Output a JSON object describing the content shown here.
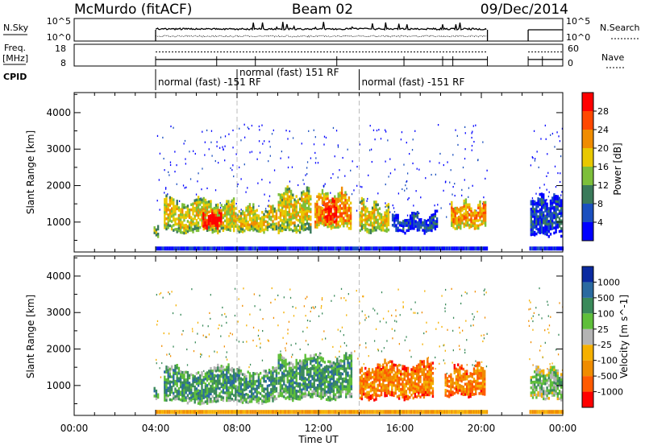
{
  "header": {
    "station": "McMurdo (fitACF)",
    "beam": "Beam 02",
    "date": "09/Dec/2014"
  },
  "panels_top": {
    "nsky_label": "N.Sky",
    "nsky_ticks": [
      "10^5",
      "10^0"
    ],
    "nsearch_label": "N.Search",
    "nsearch_ticks": [
      "10^5",
      "10^0"
    ],
    "freq_label": "Freq.",
    "freq_unit": "[MHz]",
    "freq_ticks": [
      "18",
      "8"
    ],
    "nave_label": "Nave",
    "nave_ticks": [
      "60",
      "0"
    ],
    "cpid_label": "CPID",
    "cpid_segments": [
      {
        "text": "normal (fast) -151 RF",
        "start": 4.0,
        "end": 8.0,
        "row": 1
      },
      {
        "text": "normal (fast) 151 RF",
        "start": 8.0,
        "end": 14.0,
        "row": 0
      },
      {
        "text": "normal (fast) -151 RF",
        "start": 14.0,
        "end": 20.3,
        "row": 1
      }
    ]
  },
  "chart_data": [
    {
      "type": "heatmap",
      "name": "power",
      "ylabel": "Slant Range [km]",
      "y_ticks": [
        1000,
        2000,
        3000,
        4000
      ],
      "ylim": [
        180,
        4550
      ],
      "x_ticks": [
        "00:00",
        "04:00",
        "08:00",
        "12:00",
        "16:00",
        "20:00",
        "00:00"
      ],
      "xlim_hours": [
        0,
        24
      ],
      "colorbar_label": "Power [dB]",
      "colorbar_ticks": [
        "28",
        "24",
        "20",
        "16",
        "12",
        "8",
        "4"
      ],
      "colorbar_colors": [
        "#0000ff",
        "#1a4fbf",
        "#3a7a5a",
        "#7dbf3a",
        "#e8c800",
        "#f08c00",
        "#ff4800",
        "#ff0000"
      ],
      "data_gaps_hours": [
        [
          0,
          3.9
        ],
        [
          20.3,
          22.3
        ]
      ],
      "regions": [
        {
          "start": 3.9,
          "end": 4.1,
          "r0": 600,
          "r1": 1000,
          "level": 3
        },
        {
          "start": 4.4,
          "end": 7.8,
          "r0": 700,
          "r1": 1600,
          "level": 4
        },
        {
          "start": 6.3,
          "end": 7.2,
          "r0": 800,
          "r1": 1300,
          "level": 7
        },
        {
          "start": 7.8,
          "end": 9.9,
          "r0": 700,
          "r1": 1400,
          "level": 4
        },
        {
          "start": 10.0,
          "end": 11.6,
          "r0": 700,
          "r1": 1900,
          "level": 4
        },
        {
          "start": 11.8,
          "end": 13.6,
          "r0": 800,
          "r1": 1800,
          "level": 5
        },
        {
          "start": 12.3,
          "end": 12.9,
          "r0": 900,
          "r1": 1600,
          "level": 7
        },
        {
          "start": 14.0,
          "end": 15.4,
          "r0": 700,
          "r1": 1500,
          "level": 4
        },
        {
          "start": 15.6,
          "end": 17.8,
          "r0": 700,
          "r1": 1200,
          "level": 1
        },
        {
          "start": 18.5,
          "end": 20.2,
          "r0": 800,
          "r1": 1500,
          "level": 5
        },
        {
          "start": 22.4,
          "end": 23.9,
          "r0": 600,
          "r1": 1700,
          "level": 1
        }
      ]
    },
    {
      "type": "heatmap",
      "name": "velocity",
      "ylabel": "Slant Range [km]",
      "y_ticks": [
        1000,
        2000,
        3000,
        4000
      ],
      "ylim": [
        180,
        4550
      ],
      "x_ticks": [
        "00:00",
        "04:00",
        "08:00",
        "12:00",
        "16:00",
        "20:00",
        "00:00"
      ],
      "xlim_hours": [
        0,
        24
      ],
      "xlabel": "Time UT",
      "colorbar_label": "Velocity [m s^-1]",
      "colorbar_ticks": [
        "1000",
        "500",
        "100",
        "25",
        "-25",
        "-100",
        "-500",
        "-1000"
      ],
      "colorbar_colors": [
        "#ff0000",
        "#ff5a00",
        "#f08c00",
        "#f5b000",
        "#b4b4b4",
        "#5fbf3a",
        "#3a8a5a",
        "#2a6aa0",
        "#0a2aa0"
      ],
      "data_gaps_hours": [
        [
          0,
          3.9
        ],
        [
          20.3,
          22.3
        ]
      ],
      "regions": [
        {
          "start": 3.9,
          "end": 4.1,
          "r0": 600,
          "r1": 1000,
          "level": 6
        },
        {
          "start": 4.4,
          "end": 9.9,
          "r0": 500,
          "r1": 1500,
          "level": 6
        },
        {
          "start": 10.0,
          "end": 13.6,
          "r0": 600,
          "r1": 1800,
          "level": 6
        },
        {
          "start": 14.0,
          "end": 17.6,
          "r0": 600,
          "r1": 1600,
          "level": 2
        },
        {
          "start": 18.2,
          "end": 20.2,
          "r0": 700,
          "r1": 1500,
          "level": 2
        },
        {
          "start": 22.4,
          "end": 23.9,
          "r0": 600,
          "r1": 1500,
          "level": 5
        }
      ]
    }
  ]
}
